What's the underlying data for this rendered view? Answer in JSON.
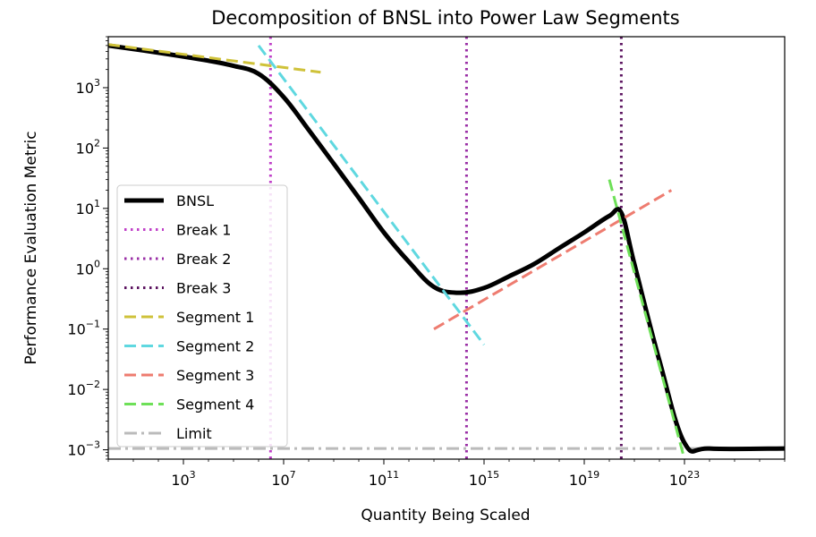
{
  "chart_data": {
    "type": "line",
    "title": "Decomposition of BNSL into Power Law Segments",
    "xlabel": "Quantity Being Scaled",
    "ylabel": "Performance Evaluation Metric",
    "x_scale": "log",
    "y_scale": "log",
    "xlim": [
      1,
      1e+27
    ],
    "ylim": [
      0.0007,
      7000
    ],
    "x_tick_labels": [
      {
        "value": 1000.0,
        "base": "10",
        "exp": "3"
      },
      {
        "value": 10000000.0,
        "base": "10",
        "exp": "7"
      },
      {
        "value": 100000000000.0,
        "base": "10",
        "exp": "11"
      },
      {
        "value": 1000000000000000.0,
        "base": "10",
        "exp": "15"
      },
      {
        "value": 1e+19,
        "base": "10",
        "exp": "19"
      },
      {
        "value": 1e+23,
        "base": "10",
        "exp": "23"
      }
    ],
    "y_tick_labels": [
      {
        "value": 0.001,
        "base": "10",
        "exp": "−3"
      },
      {
        "value": 0.01,
        "base": "10",
        "exp": "−2"
      },
      {
        "value": 0.1,
        "base": "10",
        "exp": "−1"
      },
      {
        "value": 1,
        "base": "10",
        "exp": "0"
      },
      {
        "value": 10,
        "base": "10",
        "exp": "1"
      },
      {
        "value": 100,
        "base": "10",
        "exp": "2"
      },
      {
        "value": 1000,
        "base": "10",
        "exp": "3"
      }
    ],
    "grid": false,
    "legend_position": "center-left",
    "series": [
      {
        "name": "BNSL",
        "color": "#000000",
        "style": "solid",
        "points": [
          [
            1,
            5000
          ],
          [
            100.0,
            3800
          ],
          [
            10000.0,
            2800
          ],
          [
            100000.0,
            2300
          ],
          [
            1000000.0,
            1700
          ],
          [
            10000000.0,
            700
          ],
          [
            100000000.0,
            200
          ],
          [
            1000000000.0,
            55
          ],
          [
            10000000000.0,
            15
          ],
          [
            100000000000.0,
            4
          ],
          [
            1000000000000.0,
            1.3
          ],
          [
            10000000000000.0,
            0.5
          ],
          [
            100000000000000.0,
            0.4
          ],
          [
            1000000000000000.0,
            0.48
          ],
          [
            1e+16,
            0.75
          ],
          [
            1e+17,
            1.2
          ],
          [
            1e+18,
            2.2
          ],
          [
            1e+19,
            4
          ],
          [
            1e+20,
            7.5
          ],
          [
            3e+20,
            8.5
          ],
          [
            1e+21,
            1.2
          ],
          [
            1e+22,
            0.03
          ],
          [
            1e+23,
            0.0013
          ],
          [
            1e+24,
            0.00105
          ],
          [
            1e+27,
            0.00105
          ]
        ]
      },
      {
        "name": "Break 1",
        "color": "#c040c8",
        "style": "dotted",
        "x": 3000000.0
      },
      {
        "name": "Break 2",
        "color": "#9a2fa6",
        "style": "dotted",
        "x": 200000000000000.0
      },
      {
        "name": "Break 3",
        "color": "#5c1460",
        "style": "dotted",
        "x": 3e+20
      },
      {
        "name": "Segment 1",
        "color": "#cfc23a",
        "style": "dashed",
        "points": [
          [
            1,
            5200
          ],
          [
            300000000.0,
            1800
          ]
        ]
      },
      {
        "name": "Segment 2",
        "color": "#5fd8e0",
        "style": "dashed",
        "points": [
          [
            1000000.0,
            5000
          ],
          [
            1000000000000000.0,
            0.055
          ]
        ]
      },
      {
        "name": "Segment 3",
        "color": "#ee7c70",
        "style": "dashed",
        "points": [
          [
            10000000000000.0,
            0.1
          ],
          [
            3e+22,
            20
          ]
        ]
      },
      {
        "name": "Segment 4",
        "color": "#6ee058",
        "style": "dashed",
        "points": [
          [
            1e+20,
            30
          ],
          [
            1e+23,
            0.0007
          ]
        ]
      },
      {
        "name": "Limit",
        "color": "#bbbbbb",
        "style": "dashdot",
        "y": 0.00105
      }
    ]
  }
}
